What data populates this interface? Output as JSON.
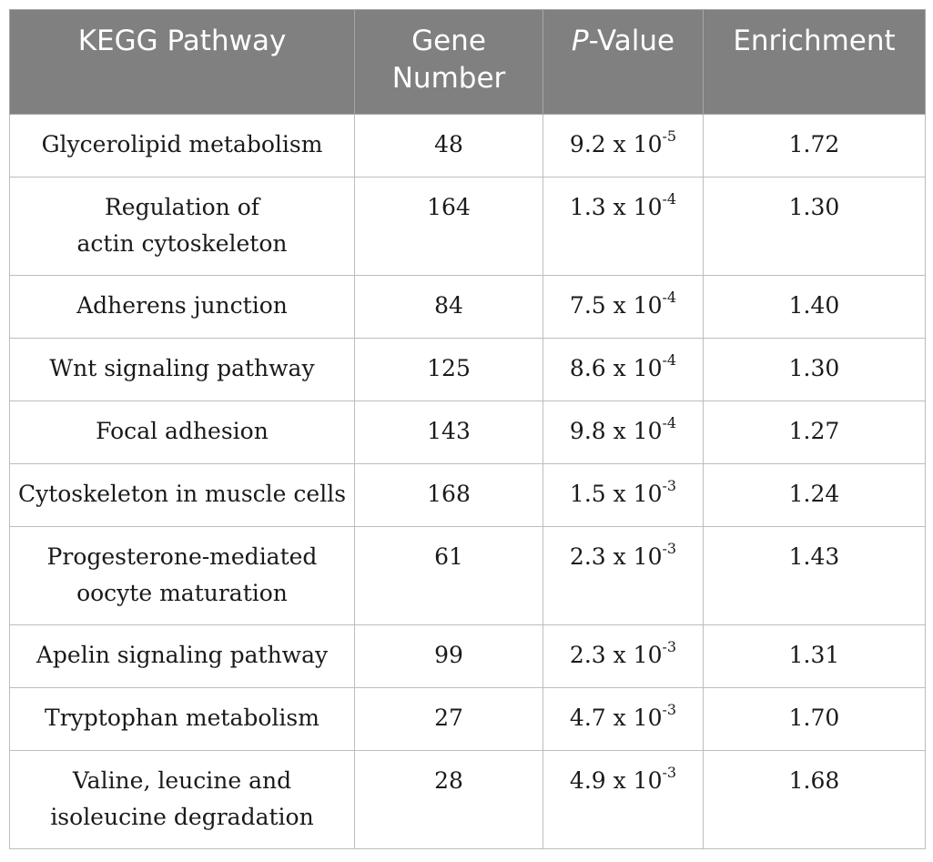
{
  "table": {
    "headers": {
      "pathway": "KEGG Pathway",
      "gene_line1": "Gene",
      "gene_line2": "Number",
      "pvalue_p": "P",
      "pvalue_rest": "-Value",
      "enrichment": "Enrichment"
    },
    "rows": [
      {
        "pathway_line1": "Glycerolipid metabolism",
        "pathway_line2": "",
        "genes": "48",
        "p_mantissa": "9.2 x 10",
        "p_exp": "-5",
        "enrichment": "1.72"
      },
      {
        "pathway_line1": "Regulation of",
        "pathway_line2": "actin cytoskeleton",
        "genes": "164",
        "p_mantissa": "1.3 x 10",
        "p_exp": "-4",
        "enrichment": "1.30"
      },
      {
        "pathway_line1": "Adherens junction",
        "pathway_line2": "",
        "genes": "84",
        "p_mantissa": "7.5 x 10",
        "p_exp": "-4",
        "enrichment": "1.40"
      },
      {
        "pathway_line1": "Wnt signaling pathway",
        "pathway_line2": "",
        "genes": "125",
        "p_mantissa": "8.6 x 10",
        "p_exp": "-4",
        "enrichment": "1.30"
      },
      {
        "pathway_line1": "Focal adhesion",
        "pathway_line2": "",
        "genes": "143",
        "p_mantissa": "9.8 x 10",
        "p_exp": "-4",
        "enrichment": "1.27"
      },
      {
        "pathway_line1": "Cytoskeleton in muscle cells",
        "pathway_line2": "",
        "genes": "168",
        "p_mantissa": "1.5 x 10",
        "p_exp": "-3",
        "enrichment": "1.24"
      },
      {
        "pathway_line1": "Progesterone-mediated",
        "pathway_line2": "oocyte maturation",
        "genes": "61",
        "p_mantissa": "2.3 x 10",
        "p_exp": "-3",
        "enrichment": "1.43"
      },
      {
        "pathway_line1": "Apelin signaling pathway",
        "pathway_line2": "",
        "genes": "99",
        "p_mantissa": "2.3 x 10",
        "p_exp": "-3",
        "enrichment": "1.31"
      },
      {
        "pathway_line1": "Tryptophan metabolism",
        "pathway_line2": "",
        "genes": "27",
        "p_mantissa": "4.7 x 10",
        "p_exp": "-3",
        "enrichment": "1.70"
      },
      {
        "pathway_line1": "Valine, leucine and",
        "pathway_line2": "isoleucine degradation",
        "genes": "28",
        "p_mantissa": "4.9 x 10",
        "p_exp": "-3",
        "enrichment": "1.68"
      }
    ]
  }
}
